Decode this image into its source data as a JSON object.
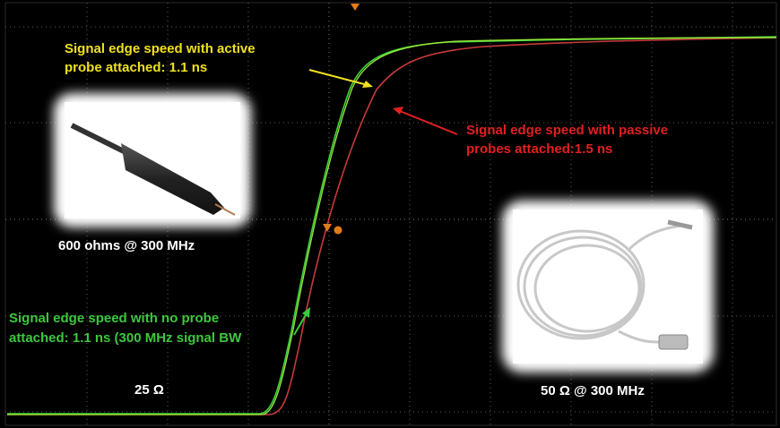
{
  "annotations": {
    "active_probe": {
      "lines": [
        "Signal edge speed with active",
        "probe attached: 1.1 ns"
      ]
    },
    "passive_probe": {
      "lines": [
        "Signal edge speed with passive",
        "probes attached:1.5 ns"
      ]
    },
    "no_probe": {
      "lines": [
        "Signal edge speed with no probe",
        "attached: 1.1 ns (300 MHz signal BW"
      ]
    },
    "active_impedance": "600 ohms @ 300 MHz",
    "source_impedance": "25 Ω",
    "passive_impedance": "50 Ω @ 300 MHz"
  }
}
